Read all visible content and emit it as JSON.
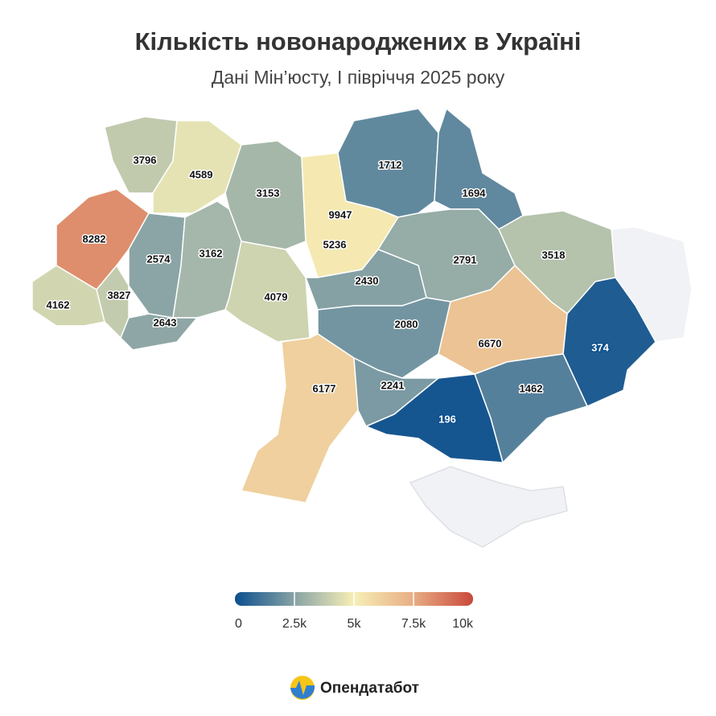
{
  "chart_data": {
    "type": "choropleth",
    "title": "Кількість новонароджених в Україні",
    "subtitle": "Дані Мін’юсту, І півріччя 2025 року",
    "values": [
      3796,
      4589,
      3153,
      9947,
      5236,
      1712,
      1694,
      8282,
      2574,
      3162,
      2791,
      3518,
      4162,
      3827,
      2643,
      4079,
      2430,
      2080,
      6670,
      374,
      6177,
      2241,
      1462,
      196
    ],
    "colorbar": {
      "range": [
        0,
        10000
      ],
      "ticks": [
        0,
        {
          "value": 2500,
          "label": "2.5k"
        },
        {
          "value": 5000,
          "label": "5k"
        },
        {
          "value": 7500,
          "label": "7.5k"
        },
        {
          "value": 10000,
          "label": "10k"
        }
      ],
      "colors": [
        "#0c4f8e",
        "#88a3a5",
        "#f7efb6",
        "#e7ad83",
        "#c9493b"
      ]
    },
    "brand": "Опендатабот"
  }
}
